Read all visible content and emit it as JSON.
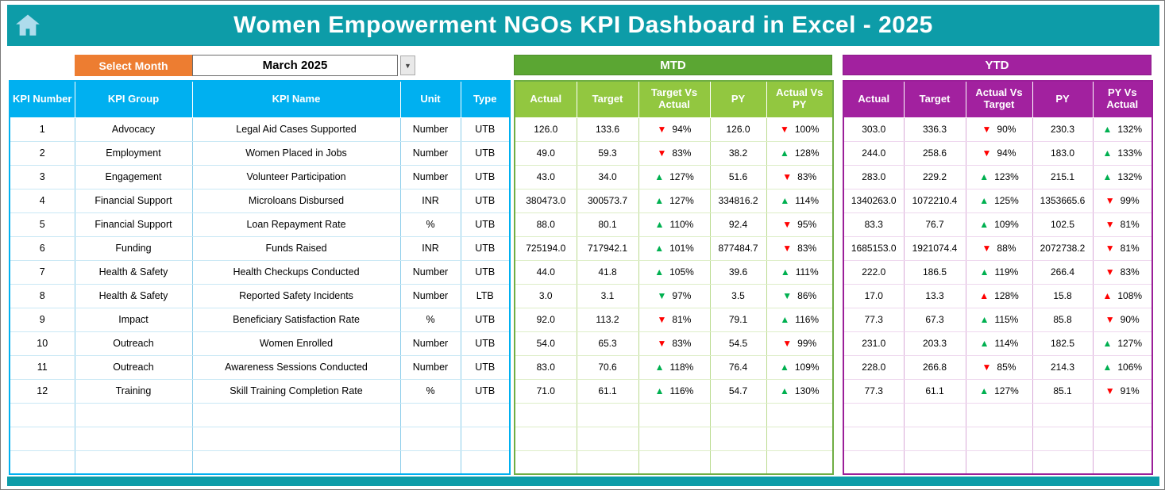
{
  "header": {
    "title": "Women Empowerment NGOs KPI Dashboard in Excel - 2025"
  },
  "controls": {
    "select_month_label": "Select Month",
    "selected_month": "March 2025",
    "dropdown_icon": "▼"
  },
  "colors": {
    "teal": "#0D9CA8",
    "orange": "#ED7D31",
    "blue": "#00B0F0",
    "mtd_green": "#5BA633",
    "mtd_header_green": "#92C740",
    "ytd_purple": "#A2219F",
    "arrow_up_green": "#00B050",
    "arrow_down_red": "#FF0000"
  },
  "kpi_table": {
    "headers": [
      "KPI Number",
      "KPI Group",
      "KPI Name",
      "Unit",
      "Type"
    ],
    "rows": [
      [
        "1",
        "Advocacy",
        "Legal Aid Cases Supported",
        "Number",
        "UTB"
      ],
      [
        "2",
        "Employment",
        "Women Placed in Jobs",
        "Number",
        "UTB"
      ],
      [
        "3",
        "Engagement",
        "Volunteer Participation",
        "Number",
        "UTB"
      ],
      [
        "4",
        "Financial Support",
        "Microloans Disbursed",
        "INR",
        "UTB"
      ],
      [
        "5",
        "Financial Support",
        "Loan Repayment Rate",
        "%",
        "UTB"
      ],
      [
        "6",
        "Funding",
        "Funds Raised",
        "INR",
        "UTB"
      ],
      [
        "7",
        "Health & Safety",
        "Health Checkups Conducted",
        "Number",
        "UTB"
      ],
      [
        "8",
        "Health & Safety",
        "Reported Safety Incidents",
        "Number",
        "LTB"
      ],
      [
        "9",
        "Impact",
        "Beneficiary Satisfaction Rate",
        "%",
        "UTB"
      ],
      [
        "10",
        "Outreach",
        "Women Enrolled",
        "Number",
        "UTB"
      ],
      [
        "11",
        "Outreach",
        "Awareness Sessions Conducted",
        "Number",
        "UTB"
      ],
      [
        "12",
        "Training",
        "Skill Training Completion Rate",
        "%",
        "UTB"
      ]
    ],
    "empty_rows": 3
  },
  "mtd_table": {
    "title": "MTD",
    "headers": [
      "Actual",
      "Target",
      "Target Vs Actual",
      "PY",
      "Actual Vs PY"
    ],
    "rows": [
      {
        "actual": "126.0",
        "target": "133.6",
        "target_vs_actual": {
          "dir": "down",
          "color": "red",
          "value": "94%"
        },
        "py": "126.0",
        "actual_vs_py": {
          "dir": "down",
          "color": "red",
          "value": "100%"
        }
      },
      {
        "actual": "49.0",
        "target": "59.3",
        "target_vs_actual": {
          "dir": "down",
          "color": "red",
          "value": "83%"
        },
        "py": "38.2",
        "actual_vs_py": {
          "dir": "up",
          "color": "green",
          "value": "128%"
        }
      },
      {
        "actual": "43.0",
        "target": "34.0",
        "target_vs_actual": {
          "dir": "up",
          "color": "green",
          "value": "127%"
        },
        "py": "51.6",
        "actual_vs_py": {
          "dir": "down",
          "color": "red",
          "value": "83%"
        }
      },
      {
        "actual": "380473.0",
        "target": "300573.7",
        "target_vs_actual": {
          "dir": "up",
          "color": "green",
          "value": "127%"
        },
        "py": "334816.2",
        "actual_vs_py": {
          "dir": "up",
          "color": "green",
          "value": "114%"
        }
      },
      {
        "actual": "88.0",
        "target": "80.1",
        "target_vs_actual": {
          "dir": "up",
          "color": "green",
          "value": "110%"
        },
        "py": "92.4",
        "actual_vs_py": {
          "dir": "down",
          "color": "red",
          "value": "95%"
        }
      },
      {
        "actual": "725194.0",
        "target": "717942.1",
        "target_vs_actual": {
          "dir": "up",
          "color": "green",
          "value": "101%"
        },
        "py": "877484.7",
        "actual_vs_py": {
          "dir": "down",
          "color": "red",
          "value": "83%"
        }
      },
      {
        "actual": "44.0",
        "target": "41.8",
        "target_vs_actual": {
          "dir": "up",
          "color": "green",
          "value": "105%"
        },
        "py": "39.6",
        "actual_vs_py": {
          "dir": "up",
          "color": "green",
          "value": "111%"
        }
      },
      {
        "actual": "3.0",
        "target": "3.1",
        "target_vs_actual": {
          "dir": "down",
          "color": "green",
          "value": "97%"
        },
        "py": "3.5",
        "actual_vs_py": {
          "dir": "down",
          "color": "green",
          "value": "86%"
        }
      },
      {
        "actual": "92.0",
        "target": "113.2",
        "target_vs_actual": {
          "dir": "down",
          "color": "red",
          "value": "81%"
        },
        "py": "79.1",
        "actual_vs_py": {
          "dir": "up",
          "color": "green",
          "value": "116%"
        }
      },
      {
        "actual": "54.0",
        "target": "65.3",
        "target_vs_actual": {
          "dir": "down",
          "color": "red",
          "value": "83%"
        },
        "py": "54.5",
        "actual_vs_py": {
          "dir": "down",
          "color": "red",
          "value": "99%"
        }
      },
      {
        "actual": "83.0",
        "target": "70.6",
        "target_vs_actual": {
          "dir": "up",
          "color": "green",
          "value": "118%"
        },
        "py": "76.4",
        "actual_vs_py": {
          "dir": "up",
          "color": "green",
          "value": "109%"
        }
      },
      {
        "actual": "71.0",
        "target": "61.1",
        "target_vs_actual": {
          "dir": "up",
          "color": "green",
          "value": "116%"
        },
        "py": "54.7",
        "actual_vs_py": {
          "dir": "up",
          "color": "green",
          "value": "130%"
        }
      }
    ],
    "empty_rows": 3
  },
  "ytd_table": {
    "title": "YTD",
    "headers": [
      "Actual",
      "Target",
      "Actual Vs Target",
      "PY",
      "PY Vs Actual"
    ],
    "rows": [
      {
        "actual": "303.0",
        "target": "336.3",
        "actual_vs_target": {
          "dir": "down",
          "color": "red",
          "value": "90%"
        },
        "py": "230.3",
        "py_vs_actual": {
          "dir": "up",
          "color": "green",
          "value": "132%"
        }
      },
      {
        "actual": "244.0",
        "target": "258.6",
        "actual_vs_target": {
          "dir": "down",
          "color": "red",
          "value": "94%"
        },
        "py": "183.0",
        "py_vs_actual": {
          "dir": "up",
          "color": "green",
          "value": "133%"
        }
      },
      {
        "actual": "283.0",
        "target": "229.2",
        "actual_vs_target": {
          "dir": "up",
          "color": "green",
          "value": "123%"
        },
        "py": "215.1",
        "py_vs_actual": {
          "dir": "up",
          "color": "green",
          "value": "132%"
        }
      },
      {
        "actual": "1340263.0",
        "target": "1072210.4",
        "actual_vs_target": {
          "dir": "up",
          "color": "green",
          "value": "125%"
        },
        "py": "1353665.6",
        "py_vs_actual": {
          "dir": "down",
          "color": "red",
          "value": "99%"
        }
      },
      {
        "actual": "83.3",
        "target": "76.7",
        "actual_vs_target": {
          "dir": "up",
          "color": "green",
          "value": "109%"
        },
        "py": "102.5",
        "py_vs_actual": {
          "dir": "down",
          "color": "red",
          "value": "81%"
        }
      },
      {
        "actual": "1685153.0",
        "target": "1921074.4",
        "actual_vs_target": {
          "dir": "down",
          "color": "red",
          "value": "88%"
        },
        "py": "2072738.2",
        "py_vs_actual": {
          "dir": "down",
          "color": "red",
          "value": "81%"
        }
      },
      {
        "actual": "222.0",
        "target": "186.5",
        "actual_vs_target": {
          "dir": "up",
          "color": "green",
          "value": "119%"
        },
        "py": "266.4",
        "py_vs_actual": {
          "dir": "down",
          "color": "red",
          "value": "83%"
        }
      },
      {
        "actual": "17.0",
        "target": "13.3",
        "actual_vs_target": {
          "dir": "up",
          "color": "red",
          "value": "128%"
        },
        "py": "15.8",
        "py_vs_actual": {
          "dir": "up",
          "color": "red",
          "value": "108%"
        }
      },
      {
        "actual": "77.3",
        "target": "67.3",
        "actual_vs_target": {
          "dir": "up",
          "color": "green",
          "value": "115%"
        },
        "py": "85.8",
        "py_vs_actual": {
          "dir": "down",
          "color": "red",
          "value": "90%"
        }
      },
      {
        "actual": "231.0",
        "target": "203.3",
        "actual_vs_target": {
          "dir": "up",
          "color": "green",
          "value": "114%"
        },
        "py": "182.5",
        "py_vs_actual": {
          "dir": "up",
          "color": "green",
          "value": "127%"
        }
      },
      {
        "actual": "228.0",
        "target": "266.8",
        "actual_vs_target": {
          "dir": "down",
          "color": "red",
          "value": "85%"
        },
        "py": "214.3",
        "py_vs_actual": {
          "dir": "up",
          "color": "green",
          "value": "106%"
        }
      },
      {
        "actual": "77.3",
        "target": "61.1",
        "actual_vs_target": {
          "dir": "up",
          "color": "green",
          "value": "127%"
        },
        "py": "85.1",
        "py_vs_actual": {
          "dir": "down",
          "color": "red",
          "value": "91%"
        }
      }
    ],
    "empty_rows": 3
  }
}
